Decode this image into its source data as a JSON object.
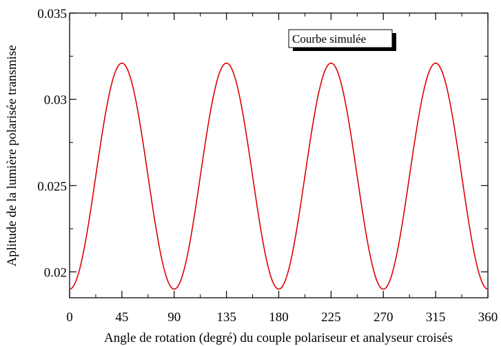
{
  "chart_data": {
    "type": "line",
    "xlabel": "Angle de rotation (degré) du couple polariseur et analyseur croisés",
    "ylabel": "Aplitude de la lumière polarisée transmise",
    "xlim": [
      0,
      360
    ],
    "ylim": [
      0.0185,
      0.035
    ],
    "x_ticks": [
      0,
      45,
      90,
      135,
      180,
      225,
      270,
      315,
      360
    ],
    "x_tick_labels": [
      "0",
      "45",
      "90",
      "135",
      "180",
      "225",
      "270",
      "315",
      "360"
    ],
    "y_ticks": [
      0.02,
      0.025,
      0.03,
      0.035
    ],
    "y_tick_labels": [
      "0.02",
      "0.025",
      "0.03",
      "0.035"
    ],
    "grid": false,
    "legend_position": "top-right",
    "series": [
      {
        "name": "Courbe simulée",
        "color": "#dd0000",
        "model": "y = 0.0190 + 0.0131 * sin(2x)^2",
        "x": [
          0,
          22.5,
          45,
          67.5,
          90,
          112.5,
          135,
          157.5,
          180,
          202.5,
          225,
          247.5,
          270,
          292.5,
          315,
          337.5,
          360
        ],
        "y": [
          0.019,
          0.02555,
          0.0321,
          0.02555,
          0.019,
          0.02555,
          0.0321,
          0.02555,
          0.019,
          0.02555,
          0.0321,
          0.02555,
          0.019,
          0.02555,
          0.0321,
          0.02555,
          0.019
        ]
      }
    ]
  }
}
